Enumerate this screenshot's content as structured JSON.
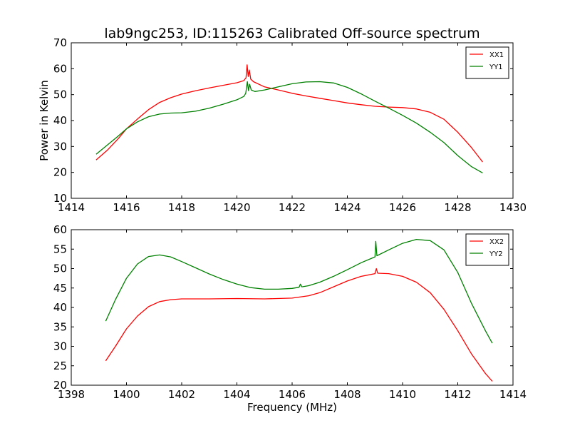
{
  "figure": {
    "title": "lab9ngc253, ID:115263 Calibrated Off-source spectrum"
  },
  "colors": {
    "red": "#ff0000",
    "green": "#008000"
  },
  "chart_data": [
    {
      "type": "line",
      "xlabel": "",
      "ylabel": "Power in Kelvin",
      "xlim": [
        1414,
        1430
      ],
      "ylim": [
        10,
        70
      ],
      "xticks": [
        1414,
        1416,
        1418,
        1420,
        1422,
        1424,
        1426,
        1428,
        1430
      ],
      "yticks": [
        10,
        20,
        30,
        40,
        50,
        60,
        70
      ],
      "grid": false,
      "legend": "top-right",
      "series": [
        {
          "name": "XX1",
          "color": "#ff0000",
          "points": [
            [
              1414.9,
              24.8
            ],
            [
              1415.3,
              28.5
            ],
            [
              1415.7,
              33.0
            ],
            [
              1416.0,
              36.8
            ],
            [
              1416.4,
              40.6
            ],
            [
              1416.8,
              44.2
            ],
            [
              1417.2,
              47.0
            ],
            [
              1417.6,
              48.8
            ],
            [
              1418.0,
              50.2
            ],
            [
              1418.5,
              51.5
            ],
            [
              1419.0,
              52.6
            ],
            [
              1419.5,
              53.6
            ],
            [
              1420.0,
              54.6
            ],
            [
              1420.25,
              55.4
            ],
            [
              1420.33,
              56.5
            ],
            [
              1420.37,
              61.5
            ],
            [
              1420.41,
              57.0
            ],
            [
              1420.45,
              59.5
            ],
            [
              1420.5,
              56.0
            ],
            [
              1420.6,
              55.0
            ],
            [
              1421.0,
              53.0
            ],
            [
              1421.5,
              51.8
            ],
            [
              1422.0,
              50.5
            ],
            [
              1422.5,
              49.5
            ],
            [
              1423.0,
              48.6
            ],
            [
              1423.5,
              47.7
            ],
            [
              1424.0,
              46.8
            ],
            [
              1424.5,
              46.1
            ],
            [
              1425.0,
              45.5
            ],
            [
              1425.5,
              45.2
            ],
            [
              1426.0,
              45.0
            ],
            [
              1426.5,
              44.5
            ],
            [
              1427.0,
              43.2
            ],
            [
              1427.5,
              40.5
            ],
            [
              1428.0,
              35.5
            ],
            [
              1428.5,
              29.5
            ],
            [
              1428.9,
              24.0
            ]
          ]
        },
        {
          "name": "YY1",
          "color": "#008000",
          "points": [
            [
              1414.9,
              27.0
            ],
            [
              1415.3,
              30.5
            ],
            [
              1415.7,
              34.0
            ],
            [
              1416.0,
              36.8
            ],
            [
              1416.4,
              39.5
            ],
            [
              1416.8,
              41.5
            ],
            [
              1417.2,
              42.5
            ],
            [
              1417.6,
              42.9
            ],
            [
              1418.0,
              43.0
            ],
            [
              1418.5,
              43.6
            ],
            [
              1419.0,
              44.8
            ],
            [
              1419.5,
              46.3
            ],
            [
              1420.0,
              48.0
            ],
            [
              1420.25,
              49.3
            ],
            [
              1420.32,
              50.5
            ],
            [
              1420.38,
              55.0
            ],
            [
              1420.42,
              51.5
            ],
            [
              1420.46,
              54.0
            ],
            [
              1420.52,
              51.8
            ],
            [
              1420.65,
              51.2
            ],
            [
              1421.0,
              51.8
            ],
            [
              1421.5,
              53.0
            ],
            [
              1422.0,
              54.2
            ],
            [
              1422.5,
              54.9
            ],
            [
              1423.0,
              55.0
            ],
            [
              1423.5,
              54.5
            ],
            [
              1424.0,
              52.8
            ],
            [
              1424.5,
              50.3
            ],
            [
              1425.0,
              47.5
            ],
            [
              1425.5,
              44.8
            ],
            [
              1426.0,
              42.0
            ],
            [
              1426.5,
              39.0
            ],
            [
              1427.0,
              35.5
            ],
            [
              1427.5,
              31.5
            ],
            [
              1428.0,
              26.5
            ],
            [
              1428.5,
              22.2
            ],
            [
              1428.9,
              19.8
            ]
          ]
        }
      ]
    },
    {
      "type": "line",
      "xlabel": "Frequency (MHz)",
      "ylabel": "",
      "xlim": [
        1398,
        1414
      ],
      "ylim": [
        20,
        60
      ],
      "xticks": [
        1398,
        1400,
        1402,
        1404,
        1406,
        1408,
        1410,
        1412,
        1414
      ],
      "yticks": [
        20,
        25,
        30,
        35,
        40,
        45,
        50,
        55,
        60
      ],
      "grid": false,
      "legend": "top-right",
      "series": [
        {
          "name": "XX2",
          "color": "#ff0000",
          "points": [
            [
              1399.25,
              26.3
            ],
            [
              1399.6,
              30.0
            ],
            [
              1400.0,
              34.5
            ],
            [
              1400.4,
              37.8
            ],
            [
              1400.8,
              40.2
            ],
            [
              1401.2,
              41.5
            ],
            [
              1401.6,
              42.0
            ],
            [
              1402.0,
              42.2
            ],
            [
              1403.0,
              42.2
            ],
            [
              1404.0,
              42.3
            ],
            [
              1405.0,
              42.2
            ],
            [
              1406.0,
              42.4
            ],
            [
              1406.6,
              43.0
            ],
            [
              1407.0,
              43.8
            ],
            [
              1407.5,
              45.3
            ],
            [
              1408.0,
              46.8
            ],
            [
              1408.5,
              48.0
            ],
            [
              1409.0,
              48.7
            ],
            [
              1409.05,
              50.0
            ],
            [
              1409.1,
              48.8
            ],
            [
              1409.5,
              48.7
            ],
            [
              1410.0,
              48.0
            ],
            [
              1410.5,
              46.5
            ],
            [
              1411.0,
              43.8
            ],
            [
              1411.5,
              39.5
            ],
            [
              1412.0,
              34.0
            ],
            [
              1412.5,
              28.0
            ],
            [
              1413.0,
              23.0
            ],
            [
              1413.25,
              21.0
            ]
          ]
        },
        {
          "name": "YY2",
          "color": "#008000",
          "points": [
            [
              1399.25,
              36.5
            ],
            [
              1399.6,
              42.0
            ],
            [
              1400.0,
              47.5
            ],
            [
              1400.4,
              51.2
            ],
            [
              1400.8,
              53.1
            ],
            [
              1401.2,
              53.5
            ],
            [
              1401.6,
              53.0
            ],
            [
              1402.0,
              51.8
            ],
            [
              1402.5,
              50.2
            ],
            [
              1403.0,
              48.6
            ],
            [
              1403.5,
              47.2
            ],
            [
              1404.0,
              46.0
            ],
            [
              1404.5,
              45.1
            ],
            [
              1405.0,
              44.7
            ],
            [
              1405.5,
              44.7
            ],
            [
              1406.0,
              44.9
            ],
            [
              1406.25,
              45.2
            ],
            [
              1406.3,
              46.0
            ],
            [
              1406.35,
              45.3
            ],
            [
              1406.6,
              45.6
            ],
            [
              1407.0,
              46.5
            ],
            [
              1407.5,
              48.0
            ],
            [
              1408.0,
              49.7
            ],
            [
              1408.5,
              51.5
            ],
            [
              1409.0,
              53.0
            ],
            [
              1409.03,
              57.0
            ],
            [
              1409.07,
              53.3
            ],
            [
              1409.5,
              54.8
            ],
            [
              1410.0,
              56.5
            ],
            [
              1410.5,
              57.5
            ],
            [
              1411.0,
              57.2
            ],
            [
              1411.5,
              54.8
            ],
            [
              1412.0,
              49.0
            ],
            [
              1412.5,
              41.0
            ],
            [
              1413.0,
              34.0
            ],
            [
              1413.25,
              30.8
            ]
          ]
        }
      ]
    }
  ]
}
